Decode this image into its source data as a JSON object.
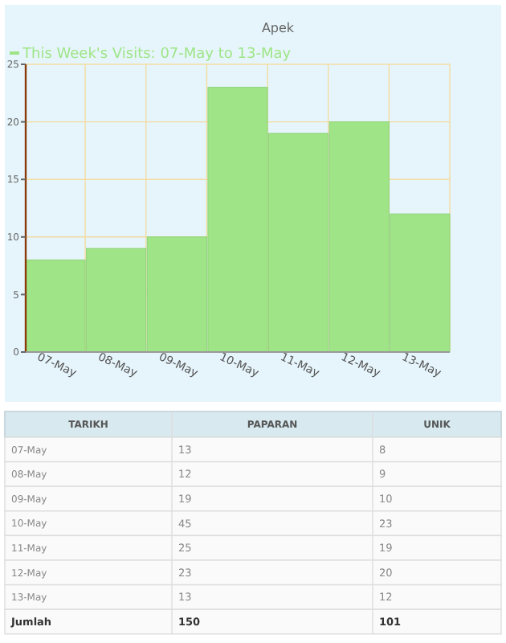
{
  "chart_data": [
    {
      "type": "bar",
      "title": "Apek",
      "categories": [
        "07-May",
        "08-May",
        "09-May",
        "10-May",
        "11-May",
        "12-May",
        "13-May"
      ],
      "series": [
        {
          "name": "This Week's Visits: 07-May to 13-May",
          "color": "#9fe587",
          "values": [
            8,
            9,
            10,
            23,
            19,
            20,
            12
          ]
        }
      ],
      "ylim": [
        0,
        25
      ],
      "yticks": [
        0,
        5,
        10,
        15,
        20,
        25
      ],
      "grid": true,
      "legend": "top left"
    },
    {
      "type": "other",
      "xlabel": "TARIKH",
      "categories": [
        "07-May",
        "08-May",
        "09-May",
        "10-May",
        "11-May",
        "12-May",
        "13-May"
      ],
      "series": [
        {
          "name": "PAPARAN",
          "values": [
            13,
            12,
            19,
            45,
            25,
            23,
            13
          ]
        },
        {
          "name": "UNIK",
          "values": [
            8,
            9,
            10,
            23,
            19,
            20,
            12
          ]
        }
      ],
      "data_labels": true,
      "totals": [
        "150",
        "101"
      ],
      "annotations": [
        "Jumlah"
      ]
    }
  ]
}
